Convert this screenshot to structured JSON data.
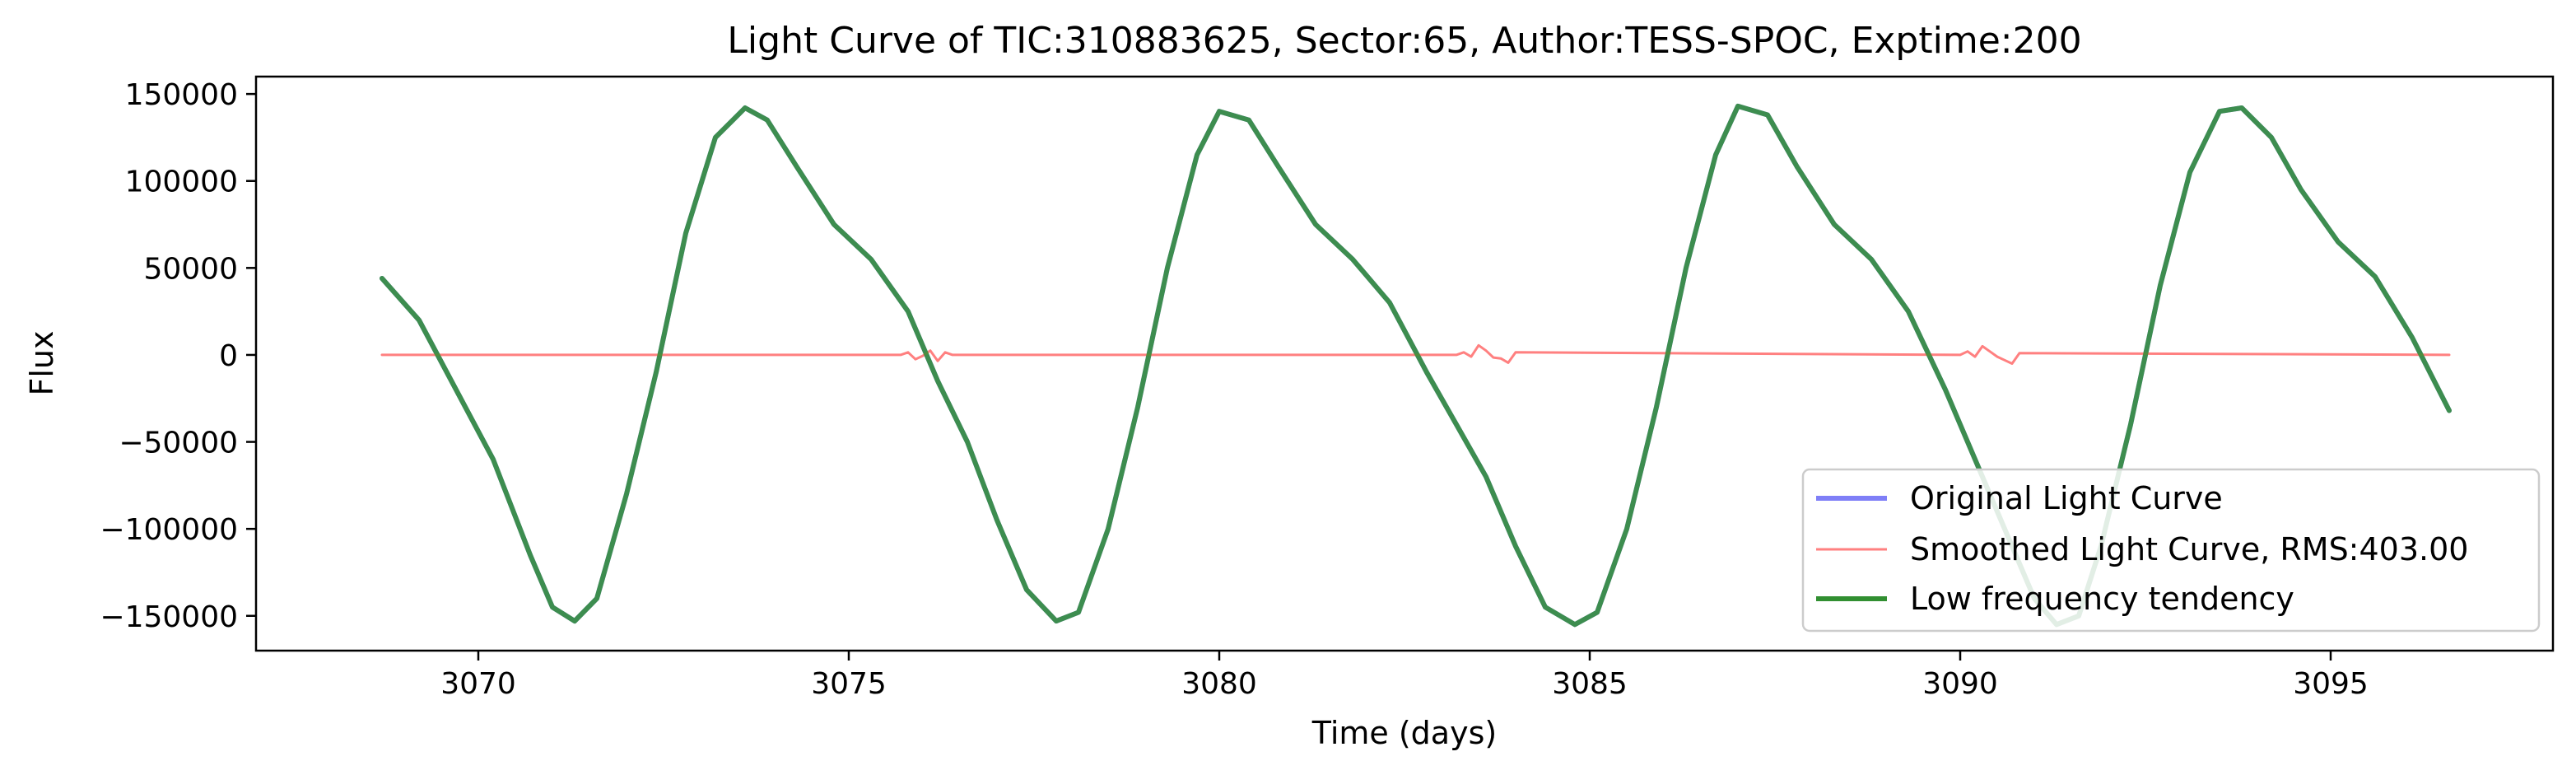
{
  "chart_data": {
    "type": "line",
    "title": "Light Curve of TIC:310883625, Sector:65, Author:TESS-SPOC, Exptime:200",
    "xlabel": "Time (days)",
    "ylabel": "Flux",
    "xlim": [
      3067.0,
      3098.0
    ],
    "ylim": [
      -170000,
      160000
    ],
    "xticks": [
      3070,
      3075,
      3080,
      3085,
      3090,
      3095
    ],
    "xtick_labels": [
      "3070",
      "3075",
      "3080",
      "3085",
      "3090",
      "3095"
    ],
    "yticks": [
      -150000,
      -100000,
      -50000,
      0,
      50000,
      100000,
      150000
    ],
    "ytick_labels": [
      "−150000",
      "−100000",
      "−50000",
      "0",
      "50000",
      "100000",
      "150000"
    ],
    "grid": false,
    "legend_position": "lower right",
    "series": [
      {
        "name": "Original Light Curve",
        "color": "#7f7ff7",
        "x": [
          3068.7,
          3069.2,
          3069.7,
          3070.2,
          3070.7,
          3071.0,
          3071.3,
          3071.6,
          3072.0,
          3072.4,
          3072.8,
          3073.2,
          3073.6,
          3073.9,
          3074.3,
          3074.8,
          3075.3,
          3075.8,
          3076.2,
          3076.6,
          3077.0,
          3077.4,
          3077.8,
          3078.1,
          3078.5,
          3078.9,
          3079.3,
          3079.7,
          3080.0,
          3080.4,
          3080.8,
          3081.3,
          3081.8,
          3082.3,
          3082.8,
          3083.2,
          3083.6,
          3084.0,
          3084.4,
          3084.8,
          3085.1,
          3085.5,
          3085.9,
          3086.3,
          3086.7,
          3087.0,
          3087.4,
          3087.8,
          3088.3,
          3088.8,
          3089.3,
          3089.8,
          3090.2,
          3090.6,
          3091.0,
          3091.3,
          3091.6,
          3091.9,
          3092.3,
          3092.7,
          3093.1,
          3093.5,
          3093.8,
          3094.2,
          3094.6,
          3095.1,
          3095.6,
          3096.1,
          3096.6
        ],
        "y": [
          44000,
          20000,
          -20000,
          -60000,
          -115000,
          -145000,
          -153000,
          -140000,
          -80000,
          -10000,
          70000,
          125000,
          142000,
          135000,
          108000,
          75000,
          55000,
          25000,
          -15000,
          -50000,
          -95000,
          -135000,
          -153000,
          -148000,
          -100000,
          -30000,
          50000,
          115000,
          140000,
          135000,
          108000,
          75000,
          55000,
          30000,
          -10000,
          -40000,
          -70000,
          -110000,
          -145000,
          -155000,
          -148000,
          -100000,
          -30000,
          50000,
          115000,
          143000,
          138000,
          108000,
          75000,
          55000,
          25000,
          -20000,
          -60000,
          -100000,
          -140000,
          -155000,
          -150000,
          -110000,
          -40000,
          40000,
          105000,
          140000,
          142000,
          125000,
          95000,
          65000,
          45000,
          10000,
          -32000
        ]
      },
      {
        "name": "Smoothed Light Curve, RMS:403.00",
        "color": "#ff8080",
        "x": [
          3068.7,
          3075.7,
          3075.8,
          3075.9,
          3076.0,
          3076.1,
          3076.2,
          3076.3,
          3076.4,
          3083.2,
          3083.3,
          3083.4,
          3083.5,
          3083.6,
          3083.7,
          3083.8,
          3083.9,
          3084.0,
          3090.0,
          3090.1,
          3090.2,
          3090.3,
          3090.4,
          3090.5,
          3090.6,
          3090.7,
          3090.8,
          3096.6
        ],
        "y": [
          0,
          0,
          1500,
          -2500,
          -500,
          2500,
          -3500,
          1500,
          0,
          0,
          1500,
          -1000,
          5500,
          2500,
          -1500,
          -2000,
          -4500,
          1500,
          0,
          2000,
          -1000,
          5000,
          2000,
          -1000,
          -3000,
          -5000,
          1000,
          0
        ]
      },
      {
        "name": "Low frequency tendency",
        "color": "#318f31",
        "x": [
          3068.7,
          3069.2,
          3069.7,
          3070.2,
          3070.7,
          3071.0,
          3071.3,
          3071.6,
          3072.0,
          3072.4,
          3072.8,
          3073.2,
          3073.6,
          3073.9,
          3074.3,
          3074.8,
          3075.3,
          3075.8,
          3076.2,
          3076.6,
          3077.0,
          3077.4,
          3077.8,
          3078.1,
          3078.5,
          3078.9,
          3079.3,
          3079.7,
          3080.0,
          3080.4,
          3080.8,
          3081.3,
          3081.8,
          3082.3,
          3082.8,
          3083.2,
          3083.6,
          3084.0,
          3084.4,
          3084.8,
          3085.1,
          3085.5,
          3085.9,
          3086.3,
          3086.7,
          3087.0,
          3087.4,
          3087.8,
          3088.3,
          3088.8,
          3089.3,
          3089.8,
          3090.2,
          3090.6,
          3091.0,
          3091.3,
          3091.6,
          3091.9,
          3092.3,
          3092.7,
          3093.1,
          3093.5,
          3093.8,
          3094.2,
          3094.6,
          3095.1,
          3095.6,
          3096.1,
          3096.6
        ],
        "y": [
          44000,
          20000,
          -20000,
          -60000,
          -115000,
          -145000,
          -153000,
          -140000,
          -80000,
          -10000,
          70000,
          125000,
          142000,
          135000,
          108000,
          75000,
          55000,
          25000,
          -15000,
          -50000,
          -95000,
          -135000,
          -153000,
          -148000,
          -100000,
          -30000,
          50000,
          115000,
          140000,
          135000,
          108000,
          75000,
          55000,
          30000,
          -10000,
          -40000,
          -70000,
          -110000,
          -145000,
          -155000,
          -148000,
          -100000,
          -30000,
          50000,
          115000,
          143000,
          138000,
          108000,
          75000,
          55000,
          25000,
          -20000,
          -60000,
          -100000,
          -140000,
          -155000,
          -150000,
          -110000,
          -40000,
          40000,
          105000,
          140000,
          142000,
          125000,
          95000,
          65000,
          45000,
          10000,
          -32000
        ]
      }
    ]
  }
}
